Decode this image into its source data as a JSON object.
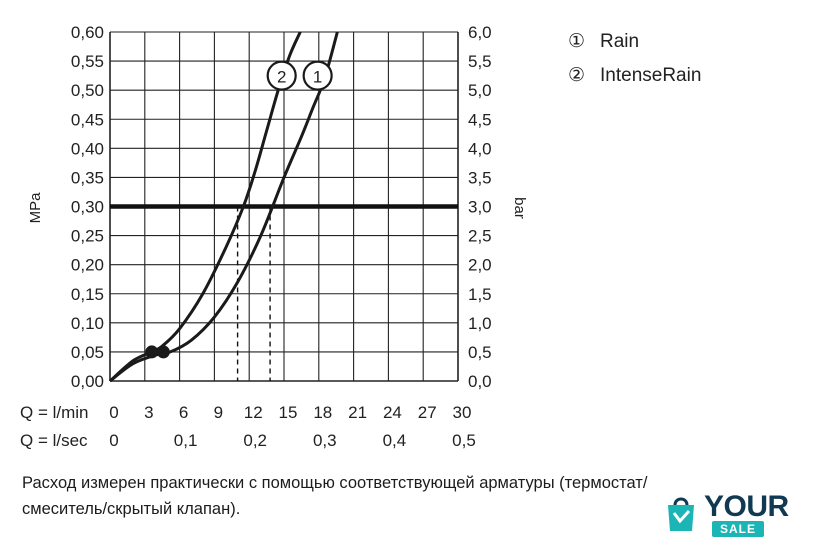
{
  "chart_data": {
    "type": "line",
    "ylabel_left": "MPa",
    "ylabel_right": "bar",
    "y_left_ticks": [
      "0,00",
      "0,05",
      "0,10",
      "0,15",
      "0,20",
      "0,25",
      "0,30",
      "0,35",
      "0,40",
      "0,45",
      "0,50",
      "0,55",
      "0,60"
    ],
    "y_right_ticks": [
      "0,0",
      "0,5",
      "1,0",
      "1,5",
      "2,0",
      "2,5",
      "3,0",
      "3,5",
      "4,0",
      "4,5",
      "5,0",
      "5,5",
      "6,0"
    ],
    "ylim": [
      0,
      0.6
    ],
    "xlim": [
      0,
      30
    ],
    "x_row1_label": "Q = l/min",
    "x_row1_ticks": [
      "0",
      "3",
      "6",
      "9",
      "12",
      "15",
      "18",
      "21",
      "24",
      "27",
      "30"
    ],
    "x_row2_label": "Q = l/sec",
    "x_row2_ticks": [
      "0",
      "0,1",
      "0,2",
      "0,3",
      "0,4",
      "0,5"
    ],
    "reference_line_y": 0.3,
    "grid": true,
    "series": [
      {
        "name": "Rain",
        "marker": "1",
        "x": [
          0,
          2,
          4,
          5.2,
          7,
          9,
          11,
          13,
          15,
          16.5,
          17.5,
          18.5,
          19.6
        ],
        "y": [
          0.0,
          0.03,
          0.045,
          0.05,
          0.07,
          0.11,
          0.17,
          0.25,
          0.35,
          0.42,
          0.47,
          0.52,
          0.6
        ]
      },
      {
        "name": "IntenseRain",
        "marker": "2",
        "x": [
          0,
          2,
          3.6,
          4.5,
          6,
          8,
          10,
          11.5,
          12.5,
          13.5,
          14.5,
          15.5,
          16.4
        ],
        "y": [
          0.0,
          0.035,
          0.05,
          0.06,
          0.09,
          0.15,
          0.23,
          0.3,
          0.36,
          0.43,
          0.5,
          0.56,
          0.6
        ]
      }
    ],
    "points": [
      {
        "x": 3.6,
        "y": 0.05
      },
      {
        "x": 4.6,
        "y": 0.05
      }
    ],
    "dashed_drops_x": [
      11.0,
      13.8
    ],
    "legend": [
      {
        "symbol": "①",
        "label": "Rain"
      },
      {
        "symbol": "②",
        "label": "IntenseRain"
      }
    ]
  },
  "note": {
    "line1": "Расход измерен практически с помощью соответствующей арматуры (термостат/",
    "line2": "смеситель/скрытый клапан)."
  },
  "logo": {
    "word": "YOUR",
    "sub": "SALE",
    "color_primary": "#113a52",
    "color_accent": "#1bb5b5"
  }
}
